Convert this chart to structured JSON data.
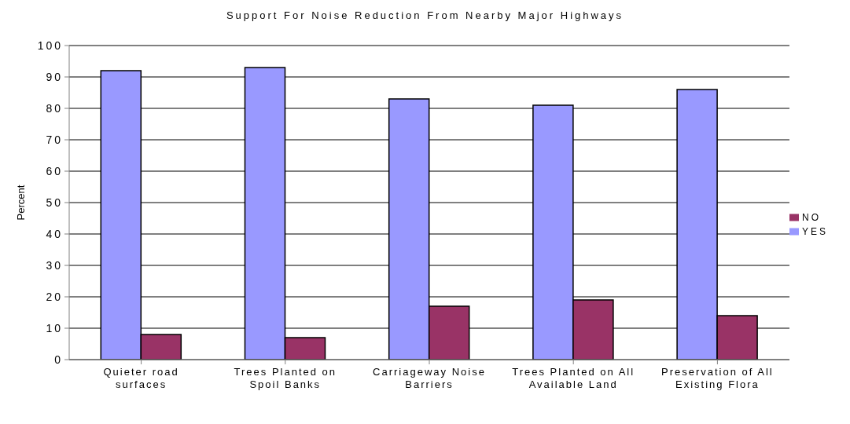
{
  "chart_data": {
    "type": "bar",
    "title": "Support For Noise Reduction From Nearby Major Highways",
    "ylabel": "Percent",
    "categories": [
      "Quieter road surfaces",
      "Trees Planted on Spoil Banks",
      "Carriageway Noise Barriers",
      "Trees Planted on All Available Land",
      "Preservation of All Existing Flora"
    ],
    "series": [
      {
        "name": "YES",
        "color": "#9999ff",
        "values": [
          92,
          93,
          83,
          81,
          86
        ]
      },
      {
        "name": "NO",
        "color": "#993366",
        "values": [
          8,
          7,
          17,
          19,
          14
        ]
      }
    ],
    "ylim": [
      0,
      100
    ],
    "yticks": [
      0,
      10,
      20,
      30,
      40,
      50,
      60,
      70,
      80,
      90,
      100
    ],
    "grid": "y",
    "legend": "right"
  }
}
